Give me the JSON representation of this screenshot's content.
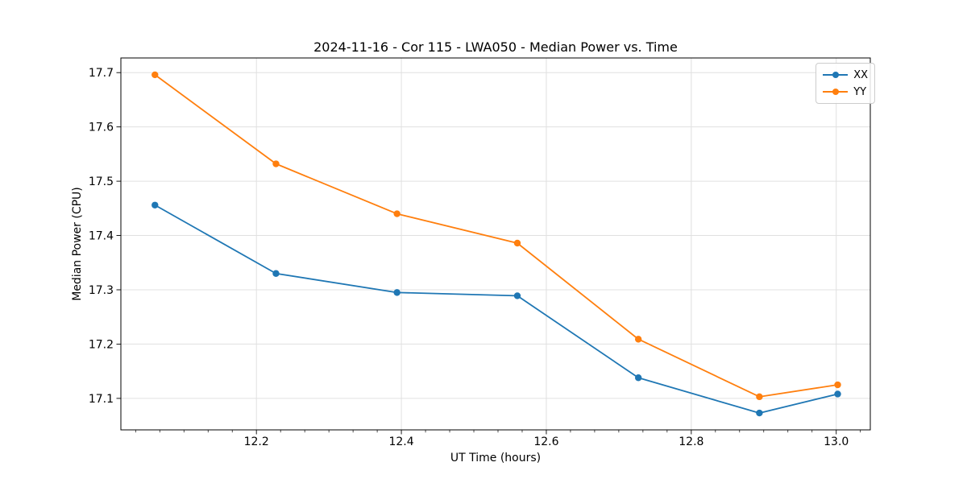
{
  "chart_data": {
    "type": "line",
    "title": "2024-11-16 - Cor 115 - LWA050 - Median Power vs. Time",
    "xlabel": "UT Time (hours)",
    "ylabel": "Median Power (CPU)",
    "x": [
      12.06,
      12.227,
      12.394,
      12.56,
      12.727,
      12.894,
      13.002
    ],
    "series": [
      {
        "name": "XX",
        "color": "#1f77b4",
        "values": [
          17.456,
          17.33,
          17.295,
          17.289,
          17.138,
          17.073,
          17.108
        ]
      },
      {
        "name": "YY",
        "color": "#ff7f0e",
        "values": [
          17.696,
          17.532,
          17.44,
          17.386,
          17.209,
          17.103,
          17.125
        ]
      }
    ],
    "xlim": [
      12.013,
      13.047
    ],
    "ylim": [
      17.042,
      17.727
    ],
    "x_ticks": [
      12.2,
      12.4,
      12.6,
      12.8,
      13.0
    ],
    "x_tick_labels": [
      "12.2",
      "12.4",
      "12.6",
      "12.8",
      "13.0"
    ],
    "y_ticks": [
      17.1,
      17.2,
      17.3,
      17.4,
      17.5,
      17.6,
      17.7
    ],
    "y_tick_labels": [
      "17.1",
      "17.2",
      "17.3",
      "17.4",
      "17.5",
      "17.6",
      "17.7"
    ],
    "x_minor_step": 0.0333333,
    "grid": true,
    "grid_color": "#e0e0e0",
    "legend_position": "upper-right",
    "legend_entries": [
      "XX",
      "YY"
    ],
    "marker": "circle"
  }
}
